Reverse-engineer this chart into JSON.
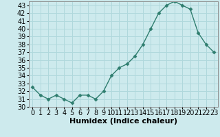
{
  "x": [
    0,
    1,
    2,
    3,
    4,
    5,
    6,
    7,
    8,
    9,
    10,
    11,
    12,
    13,
    14,
    15,
    16,
    17,
    18,
    19,
    20,
    21,
    22,
    23
  ],
  "y": [
    32.5,
    31.5,
    31.0,
    31.5,
    31.0,
    30.5,
    31.5,
    31.5,
    31.0,
    32.0,
    34.0,
    35.0,
    35.5,
    36.5,
    38.0,
    40.0,
    42.0,
    43.0,
    43.5,
    43.0,
    42.5,
    39.5,
    38.0,
    37.0
  ],
  "line_color": "#2e7d6e",
  "marker": "D",
  "marker_size": 2.5,
  "bg_color": "#cdeaed",
  "grid_color": "#b0d8dc",
  "xlabel": "Humidex (Indice chaleur)",
  "ylim": [
    30,
    43.5
  ],
  "xlim": [
    -0.5,
    23.5
  ],
  "yticks": [
    30,
    31,
    32,
    33,
    34,
    35,
    36,
    37,
    38,
    39,
    40,
    41,
    42,
    43
  ],
  "xticks": [
    0,
    1,
    2,
    3,
    4,
    5,
    6,
    7,
    8,
    9,
    10,
    11,
    12,
    13,
    14,
    15,
    16,
    17,
    18,
    19,
    20,
    21,
    22,
    23
  ],
  "xlabel_fontsize": 8,
  "tick_fontsize": 7
}
